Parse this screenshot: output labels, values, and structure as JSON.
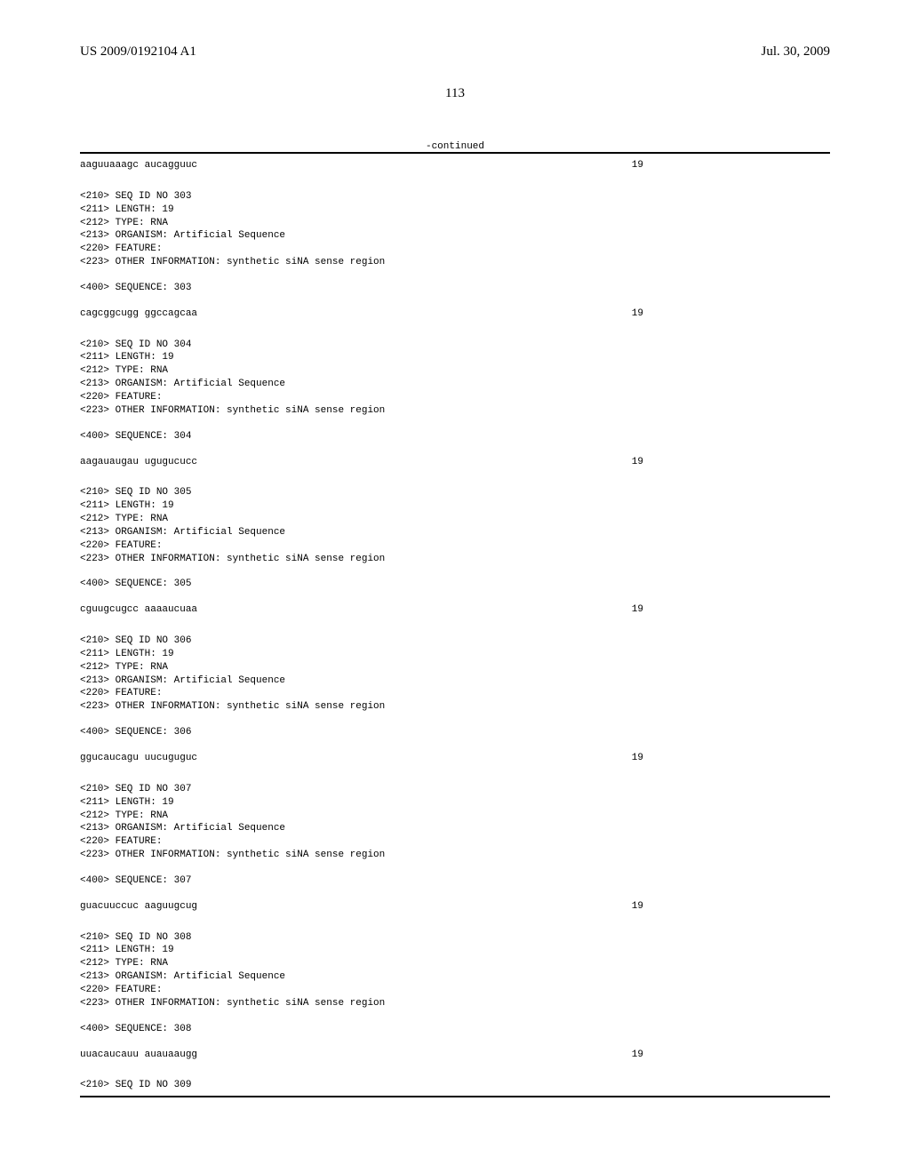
{
  "header": {
    "publication_number": "US 2009/0192104 A1",
    "publication_date": "Jul. 30, 2009"
  },
  "page_number": "113",
  "continued_label": "-continued",
  "sequences": [
    {
      "sequence_text": "aaguuaaagc aucagguuc",
      "length_value": "19",
      "standalone": true
    },
    {
      "seq_id": "<210> SEQ ID NO 303",
      "length": "<211> LENGTH: 19",
      "type": "<212> TYPE: RNA",
      "organism": "<213> ORGANISM: Artificial Sequence",
      "feature": "<220> FEATURE:",
      "other_info": "<223> OTHER INFORMATION: synthetic siNA sense region",
      "sequence_label": "<400> SEQUENCE: 303",
      "sequence_text": "cagcggcugg ggccagcaa",
      "length_value": "19"
    },
    {
      "seq_id": "<210> SEQ ID NO 304",
      "length": "<211> LENGTH: 19",
      "type": "<212> TYPE: RNA",
      "organism": "<213> ORGANISM: Artificial Sequence",
      "feature": "<220> FEATURE:",
      "other_info": "<223> OTHER INFORMATION: synthetic siNA sense region",
      "sequence_label": "<400> SEQUENCE: 304",
      "sequence_text": "aagauaugau ugugucucc",
      "length_value": "19"
    },
    {
      "seq_id": "<210> SEQ ID NO 305",
      "length": "<211> LENGTH: 19",
      "type": "<212> TYPE: RNA",
      "organism": "<213> ORGANISM: Artificial Sequence",
      "feature": "<220> FEATURE:",
      "other_info": "<223> OTHER INFORMATION: synthetic siNA sense region",
      "sequence_label": "<400> SEQUENCE: 305",
      "sequence_text": "cguugcugcc aaaaucuaa",
      "length_value": "19"
    },
    {
      "seq_id": "<210> SEQ ID NO 306",
      "length": "<211> LENGTH: 19",
      "type": "<212> TYPE: RNA",
      "organism": "<213> ORGANISM: Artificial Sequence",
      "feature": "<220> FEATURE:",
      "other_info": "<223> OTHER INFORMATION: synthetic siNA sense region",
      "sequence_label": "<400> SEQUENCE: 306",
      "sequence_text": "ggucaucagu uucuguguc",
      "length_value": "19"
    },
    {
      "seq_id": "<210> SEQ ID NO 307",
      "length": "<211> LENGTH: 19",
      "type": "<212> TYPE: RNA",
      "organism": "<213> ORGANISM: Artificial Sequence",
      "feature": "<220> FEATURE:",
      "other_info": "<223> OTHER INFORMATION: synthetic siNA sense region",
      "sequence_label": "<400> SEQUENCE: 307",
      "sequence_text": "guacuuccuc aaguugcug",
      "length_value": "19"
    },
    {
      "seq_id": "<210> SEQ ID NO 308",
      "length": "<211> LENGTH: 19",
      "type": "<212> TYPE: RNA",
      "organism": "<213> ORGANISM: Artificial Sequence",
      "feature": "<220> FEATURE:",
      "other_info": "<223> OTHER INFORMATION: synthetic siNA sense region",
      "sequence_label": "<400> SEQUENCE: 308",
      "sequence_text": "uuacaucauu auauaaugg",
      "length_value": "19"
    },
    {
      "seq_id": "<210> SEQ ID NO 309",
      "trailing": true
    }
  ]
}
